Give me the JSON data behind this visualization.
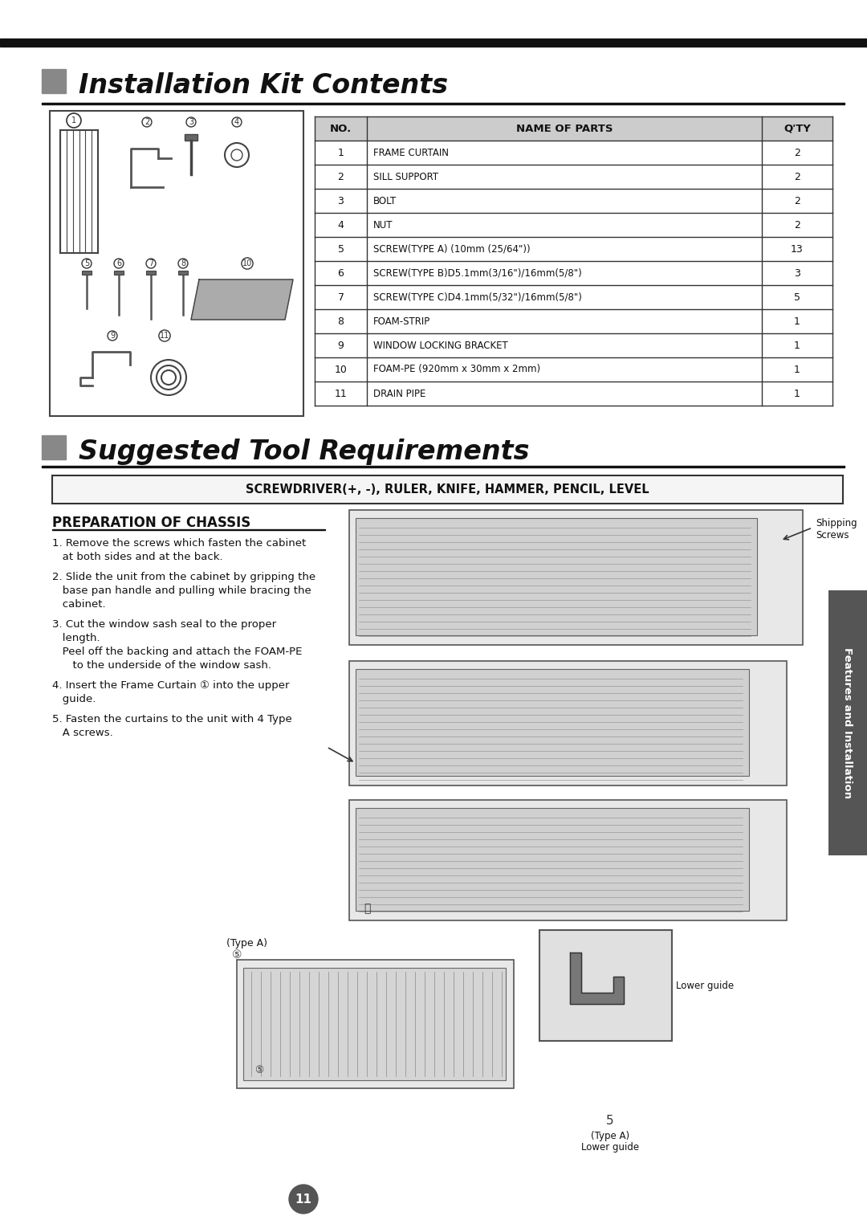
{
  "bg_color": "#ffffff",
  "top_bar_color": "#111111",
  "section_bar_color": "#888888",
  "title1": "Installation Kit Contents",
  "title2": "Suggested Tool Requirements",
  "table_header": [
    "NO.",
    "NAME OF PARTS",
    "Q'TY"
  ],
  "table_rows": [
    [
      "1",
      "FRAME CURTAIN",
      "2"
    ],
    [
      "2",
      "SILL SUPPORT",
      "2"
    ],
    [
      "3",
      "BOLT",
      "2"
    ],
    [
      "4",
      "NUT",
      "2"
    ],
    [
      "5",
      "SCREW(TYPE A) (10mm (25/64\"))",
      "13"
    ],
    [
      "6",
      "SCREW(TYPE B)D5.1mm(3/16\")/16mm(5/8\")",
      "3"
    ],
    [
      "7",
      "SCREW(TYPE C)D4.1mm(5/32\")/16mm(5/8\")",
      "5"
    ],
    [
      "8",
      "FOAM-STRIP",
      "1"
    ],
    [
      "9",
      "WINDOW LOCKING BRACKET",
      "1"
    ],
    [
      "10",
      "FOAM-PE (920mm x 30mm x 2mm)",
      "1"
    ],
    [
      "11",
      "DRAIN PIPE",
      "1"
    ]
  ],
  "tools_text": "SCREWDRIVER(+, -), RULER, KNIFE, HAMMER, PENCIL, LEVEL",
  "prep_title": "PREPARATION OF CHASSIS",
  "prep_steps": [
    "1. Remove the screws which fasten the cabinet\n   at both sides and at the back.",
    "2. Slide the unit from the cabinet by gripping the\n   base pan handle and pulling while bracing the\n   cabinet.",
    "3. Cut the window sash seal to the proper\n   length.\n   Peel off the backing and attach the FOAM-PE\n      to the underside of the window sash.",
    "4. Insert the Frame Curtain ① into the upper\n   guide.",
    "5. Fasten the curtains to the unit with 4 Type\n   A screws."
  ],
  "side_tab_text": "Features and Installation",
  "page_num": "11",
  "shipping_screws_label": "Shipping\nScrews"
}
